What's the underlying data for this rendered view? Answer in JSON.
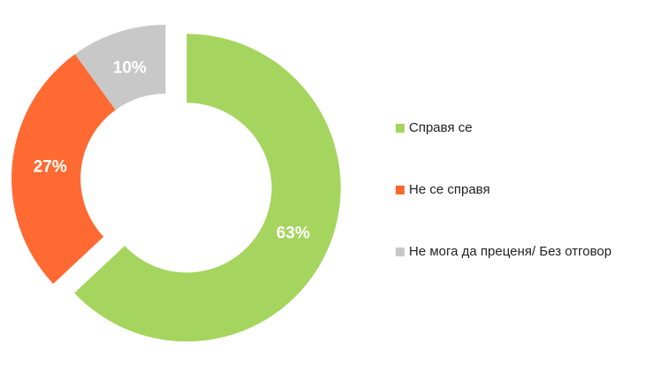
{
  "chart_data": {
    "type": "pie",
    "categories": [
      "Справя се",
      "Не се справя",
      "Не мога да преценя/ Без отговор"
    ],
    "values": [
      63,
      27,
      10
    ],
    "value_labels": [
      "63%",
      "27%",
      "10%"
    ],
    "colors": [
      "#a5d55e",
      "#ff6a33",
      "#c8c8c8"
    ]
  }
}
